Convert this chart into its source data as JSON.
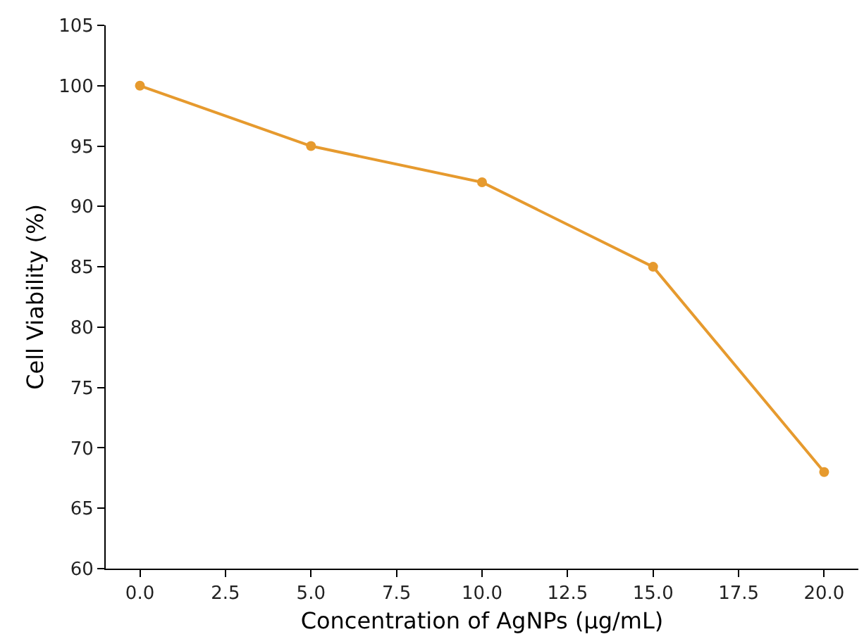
{
  "chart_data": {
    "type": "line",
    "xlabel": "Concentration of AgNPs (µg/mL)",
    "ylabel": "Cell Viability (%)",
    "x": [
      0,
      5,
      10,
      15,
      20
    ],
    "series": [
      {
        "color": "#e69a2e",
        "values": [
          100,
          95,
          92,
          85,
          68
        ]
      }
    ],
    "xlim": [
      -1,
      21
    ],
    "xticks": [
      {
        "value": 0,
        "label": "0.0"
      },
      {
        "value": 2.5,
        "label": "2.5"
      },
      {
        "value": 5,
        "label": "5.0"
      },
      {
        "value": 7.5,
        "label": "7.5"
      },
      {
        "value": 10,
        "label": "10.0"
      },
      {
        "value": 12.5,
        "label": "12.5"
      },
      {
        "value": 15,
        "label": "15.0"
      },
      {
        "value": 17.5,
        "label": "17.5"
      },
      {
        "value": 20,
        "label": "20.0"
      }
    ],
    "ylim": [
      60,
      105
    ],
    "yticks": [
      60,
      65,
      70,
      75,
      80,
      85,
      90,
      95,
      100,
      105
    ],
    "marker": "circle",
    "line_style": "solid"
  }
}
